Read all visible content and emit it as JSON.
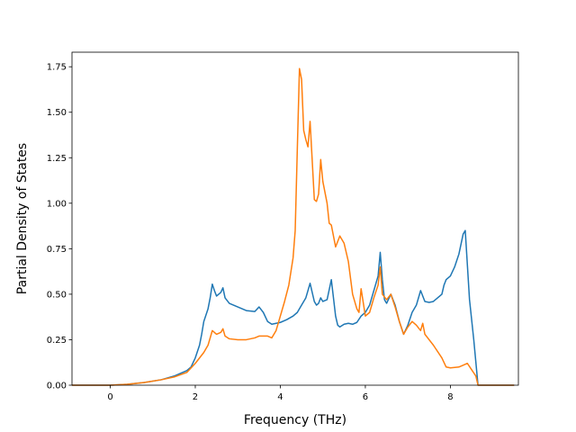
{
  "chart_data": {
    "type": "line",
    "title": "",
    "xlabel": "Frequency (THz)",
    "ylabel": "Partial Density of States",
    "xlim": [
      -0.9,
      9.6
    ],
    "ylim": [
      0.0,
      1.83
    ],
    "xticks": [
      0,
      2,
      4,
      6,
      8
    ],
    "yticks": [
      0.0,
      0.25,
      0.5,
      0.75,
      1.0,
      1.25,
      1.5,
      1.75
    ],
    "grid": false,
    "legend": "none",
    "series": [
      {
        "color": "#1f77b4",
        "points": [
          [
            -0.9,
            0.0
          ],
          [
            0.0,
            0.0
          ],
          [
            0.4,
            0.005
          ],
          [
            0.8,
            0.015
          ],
          [
            1.2,
            0.03
          ],
          [
            1.5,
            0.05
          ],
          [
            1.8,
            0.08
          ],
          [
            1.9,
            0.1
          ],
          [
            2.0,
            0.15
          ],
          [
            2.1,
            0.22
          ],
          [
            2.15,
            0.28
          ],
          [
            2.2,
            0.35
          ],
          [
            2.3,
            0.42
          ],
          [
            2.35,
            0.48
          ],
          [
            2.4,
            0.555
          ],
          [
            2.45,
            0.52
          ],
          [
            2.5,
            0.49
          ],
          [
            2.6,
            0.51
          ],
          [
            2.65,
            0.535
          ],
          [
            2.7,
            0.48
          ],
          [
            2.8,
            0.45
          ],
          [
            3.0,
            0.43
          ],
          [
            3.2,
            0.41
          ],
          [
            3.4,
            0.405
          ],
          [
            3.5,
            0.43
          ],
          [
            3.6,
            0.4
          ],
          [
            3.7,
            0.35
          ],
          [
            3.8,
            0.335
          ],
          [
            4.0,
            0.345
          ],
          [
            4.15,
            0.36
          ],
          [
            4.3,
            0.38
          ],
          [
            4.4,
            0.4
          ],
          [
            4.5,
            0.44
          ],
          [
            4.6,
            0.48
          ],
          [
            4.7,
            0.56
          ],
          [
            4.8,
            0.46
          ],
          [
            4.85,
            0.44
          ],
          [
            4.9,
            0.45
          ],
          [
            4.95,
            0.48
          ],
          [
            5.0,
            0.46
          ],
          [
            5.1,
            0.47
          ],
          [
            5.2,
            0.58
          ],
          [
            5.3,
            0.38
          ],
          [
            5.35,
            0.33
          ],
          [
            5.4,
            0.32
          ],
          [
            5.5,
            0.335
          ],
          [
            5.6,
            0.34
          ],
          [
            5.7,
            0.335
          ],
          [
            5.8,
            0.345
          ],
          [
            5.9,
            0.38
          ],
          [
            6.0,
            0.4
          ],
          [
            6.1,
            0.44
          ],
          [
            6.2,
            0.52
          ],
          [
            6.3,
            0.6
          ],
          [
            6.35,
            0.73
          ],
          [
            6.4,
            0.58
          ],
          [
            6.45,
            0.47
          ],
          [
            6.5,
            0.45
          ],
          [
            6.6,
            0.5
          ],
          [
            6.7,
            0.44
          ],
          [
            6.8,
            0.35
          ],
          [
            6.9,
            0.28
          ],
          [
            7.0,
            0.33
          ],
          [
            7.1,
            0.4
          ],
          [
            7.2,
            0.44
          ],
          [
            7.3,
            0.52
          ],
          [
            7.4,
            0.46
          ],
          [
            7.5,
            0.455
          ],
          [
            7.6,
            0.46
          ],
          [
            7.7,
            0.48
          ],
          [
            7.8,
            0.5
          ],
          [
            7.85,
            0.55
          ],
          [
            7.9,
            0.58
          ],
          [
            8.0,
            0.6
          ],
          [
            8.1,
            0.65
          ],
          [
            8.2,
            0.72
          ],
          [
            8.3,
            0.83
          ],
          [
            8.35,
            0.85
          ],
          [
            8.45,
            0.47
          ],
          [
            8.55,
            0.25
          ],
          [
            8.65,
            0.0
          ],
          [
            9.5,
            0.0
          ]
        ]
      },
      {
        "color": "#ff7f0e",
        "points": [
          [
            -0.9,
            0.0
          ],
          [
            0.0,
            0.0
          ],
          [
            0.4,
            0.005
          ],
          [
            0.8,
            0.015
          ],
          [
            1.2,
            0.03
          ],
          [
            1.5,
            0.045
          ],
          [
            1.8,
            0.07
          ],
          [
            2.0,
            0.12
          ],
          [
            2.2,
            0.18
          ],
          [
            2.3,
            0.22
          ],
          [
            2.4,
            0.3
          ],
          [
            2.5,
            0.28
          ],
          [
            2.6,
            0.29
          ],
          [
            2.65,
            0.31
          ],
          [
            2.7,
            0.27
          ],
          [
            2.8,
            0.255
          ],
          [
            3.0,
            0.25
          ],
          [
            3.2,
            0.25
          ],
          [
            3.4,
            0.26
          ],
          [
            3.5,
            0.27
          ],
          [
            3.6,
            0.27
          ],
          [
            3.7,
            0.27
          ],
          [
            3.8,
            0.26
          ],
          [
            3.9,
            0.3
          ],
          [
            4.0,
            0.38
          ],
          [
            4.1,
            0.46
          ],
          [
            4.2,
            0.55
          ],
          [
            4.3,
            0.7
          ],
          [
            4.35,
            0.85
          ],
          [
            4.4,
            1.3
          ],
          [
            4.45,
            1.74
          ],
          [
            4.5,
            1.68
          ],
          [
            4.55,
            1.4
          ],
          [
            4.6,
            1.35
          ],
          [
            4.65,
            1.31
          ],
          [
            4.7,
            1.45
          ],
          [
            4.8,
            1.02
          ],
          [
            4.85,
            1.01
          ],
          [
            4.9,
            1.05
          ],
          [
            4.95,
            1.24
          ],
          [
            5.0,
            1.12
          ],
          [
            5.1,
            1.0
          ],
          [
            5.15,
            0.89
          ],
          [
            5.2,
            0.88
          ],
          [
            5.3,
            0.76
          ],
          [
            5.4,
            0.82
          ],
          [
            5.5,
            0.78
          ],
          [
            5.6,
            0.68
          ],
          [
            5.7,
            0.5
          ],
          [
            5.8,
            0.42
          ],
          [
            5.85,
            0.4
          ],
          [
            5.9,
            0.53
          ],
          [
            6.0,
            0.38
          ],
          [
            6.1,
            0.4
          ],
          [
            6.2,
            0.48
          ],
          [
            6.3,
            0.55
          ],
          [
            6.35,
            0.65
          ],
          [
            6.4,
            0.5
          ],
          [
            6.5,
            0.47
          ],
          [
            6.6,
            0.5
          ],
          [
            6.7,
            0.43
          ],
          [
            6.8,
            0.35
          ],
          [
            6.9,
            0.28
          ],
          [
            7.0,
            0.32
          ],
          [
            7.1,
            0.35
          ],
          [
            7.2,
            0.33
          ],
          [
            7.3,
            0.3
          ],
          [
            7.35,
            0.34
          ],
          [
            7.4,
            0.28
          ],
          [
            7.6,
            0.22
          ],
          [
            7.8,
            0.15
          ],
          [
            7.9,
            0.1
          ],
          [
            8.0,
            0.095
          ],
          [
            8.2,
            0.1
          ],
          [
            8.3,
            0.11
          ],
          [
            8.4,
            0.12
          ],
          [
            8.5,
            0.085
          ],
          [
            8.6,
            0.05
          ],
          [
            8.65,
            0.0
          ],
          [
            9.5,
            0.0
          ]
        ]
      }
    ]
  }
}
